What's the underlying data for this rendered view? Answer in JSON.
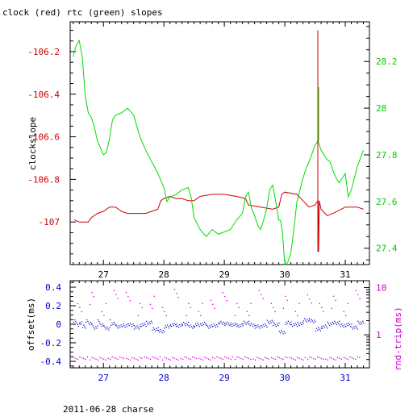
{
  "title": "clock (red) rtc (green) slopes",
  "footer": "2011-06-28 charse",
  "colors": {
    "clock": "#cc0000",
    "rtc": "#00dd00",
    "offset": "#0000cc",
    "rtt": "#dd00dd",
    "axis": "#000000"
  },
  "chart_data": [
    {
      "type": "line",
      "title": "clock (red) rtc (green) slopes",
      "xlabel": "",
      "ylabel": "clockslope",
      "y2label": "",
      "xlim": [
        26.45,
        31.4
      ],
      "ylim": [
        -107.2,
        -106.06
      ],
      "y2lim": [
        27.33,
        28.37
      ],
      "x_ticks": [
        "27",
        "28",
        "29",
        "30",
        "31"
      ],
      "y_ticks": [
        "-106.2",
        "-106.4",
        "-106.6",
        "-106.8",
        "-107"
      ],
      "y2_ticks": [
        "28.2",
        "28",
        "27.8",
        "27.6",
        "27.4"
      ],
      "series": [
        {
          "name": "clock",
          "axis": "left",
          "x": [
            26.52,
            26.6,
            26.7,
            26.75,
            26.8,
            26.9,
            27.0,
            27.1,
            27.2,
            27.3,
            27.4,
            27.5,
            27.6,
            27.7,
            27.8,
            27.9,
            27.95,
            28.0,
            28.1,
            28.2,
            28.3,
            28.4,
            28.5,
            28.6,
            28.8,
            29.0,
            29.2,
            29.35,
            29.4,
            29.6,
            29.8,
            29.9,
            29.95,
            30.0,
            30.2,
            30.3,
            30.4,
            30.5,
            30.55,
            30.56,
            30.57,
            30.6,
            30.7,
            30.8,
            31.0,
            31.1,
            31.2,
            31.3
          ],
          "y": [
            -106.99,
            -107.0,
            -107.0,
            -107.0,
            -106.98,
            -106.96,
            -106.95,
            -106.93,
            -106.93,
            -106.95,
            -106.96,
            -106.96,
            -106.96,
            -106.96,
            -106.95,
            -106.94,
            -106.9,
            -106.89,
            -106.88,
            -106.89,
            -106.89,
            -106.9,
            -106.9,
            -106.88,
            -106.87,
            -106.87,
            -106.88,
            -106.89,
            -106.92,
            -106.93,
            -106.94,
            -106.93,
            -106.87,
            -106.86,
            -106.87,
            -106.9,
            -106.93,
            -106.92,
            -106.9,
            -107.14,
            -106.9,
            -106.94,
            -106.97,
            -106.96,
            -106.93,
            -106.93,
            -106.93,
            -106.94
          ]
        },
        {
          "name": "rtc",
          "axis": "right",
          "x": [
            26.5,
            26.55,
            26.6,
            26.65,
            26.7,
            26.75,
            26.8,
            26.85,
            26.9,
            26.95,
            27.0,
            27.05,
            27.1,
            27.15,
            27.2,
            27.3,
            27.4,
            27.5,
            27.6,
            27.7,
            27.8,
            27.9,
            28.0,
            28.05,
            28.1,
            28.2,
            28.3,
            28.4,
            28.45,
            28.5,
            28.6,
            28.7,
            28.8,
            28.9,
            29.0,
            29.1,
            29.2,
            29.3,
            29.35,
            29.4,
            29.45,
            29.5,
            29.55,
            29.6,
            29.65,
            29.7,
            29.75,
            29.8,
            29.85,
            29.9,
            29.93,
            29.96,
            30.0,
            30.05,
            30.1,
            30.15,
            30.2,
            30.25,
            30.3,
            30.35,
            30.4,
            30.5,
            30.55,
            30.6,
            30.7,
            30.75,
            30.8,
            30.85,
            30.9,
            30.95,
            31.0,
            31.05,
            31.1,
            31.2,
            31.3
          ],
          "y": [
            28.22,
            28.27,
            28.29,
            28.22,
            28.05,
            27.98,
            27.96,
            27.92,
            27.86,
            27.83,
            27.8,
            27.81,
            27.87,
            27.95,
            27.97,
            27.98,
            28.0,
            27.97,
            27.88,
            27.82,
            27.77,
            27.72,
            27.66,
            27.6,
            27.62,
            27.63,
            27.65,
            27.66,
            27.62,
            27.53,
            27.48,
            27.45,
            27.48,
            27.46,
            27.47,
            27.48,
            27.52,
            27.55,
            27.62,
            27.64,
            27.57,
            27.54,
            27.5,
            27.48,
            27.52,
            27.57,
            27.65,
            27.67,
            27.6,
            27.52,
            27.52,
            27.47,
            27.33,
            27.34,
            27.38,
            27.48,
            27.6,
            27.65,
            27.7,
            27.74,
            27.77,
            27.84,
            27.86,
            27.82,
            27.78,
            27.77,
            27.73,
            27.7,
            27.68,
            27.7,
            27.72,
            27.62,
            27.65,
            27.75,
            27.82
          ]
        }
      ]
    },
    {
      "type": "scatter",
      "xlabel": "",
      "ylabel": "offset(ms)",
      "y2label": "rnd-trip(ms)",
      "y2scale": "log",
      "xlim": [
        26.45,
        31.4
      ],
      "ylim": [
        -0.47,
        0.47
      ],
      "y2lim": [
        0.2,
        14
      ],
      "x_ticks": [
        "27",
        "28",
        "29",
        "30",
        "31"
      ],
      "y_ticks": [
        "0.4",
        "0.2",
        "0",
        "-0.2",
        "-0.4"
      ],
      "y2_ticks": [
        "10",
        "1"
      ],
      "series": [
        {
          "name": "offset",
          "axis": "left",
          "x": [
            26.55,
            26.65,
            26.75,
            26.85,
            26.95,
            27.05,
            27.15,
            27.25,
            27.35,
            27.45,
            27.55,
            27.65,
            27.75,
            27.85,
            27.95,
            28.05,
            28.15,
            28.25,
            28.35,
            28.45,
            28.55,
            28.65,
            28.75,
            28.85,
            28.95,
            29.05,
            29.15,
            29.25,
            29.35,
            29.45,
            29.55,
            29.65,
            29.75,
            29.85,
            29.95,
            30.05,
            30.15,
            30.25,
            30.35,
            30.45,
            30.55,
            30.65,
            30.75,
            30.85,
            30.95,
            31.05,
            31.15,
            31.25
          ],
          "y": [
            0.0,
            -0.02,
            0.01,
            -0.03,
            0.0,
            -0.04,
            0.01,
            -0.02,
            -0.01,
            0.0,
            -0.03,
            0.0,
            0.02,
            -0.05,
            -0.07,
            -0.02,
            0.0,
            -0.01,
            0.01,
            -0.02,
            0.0,
            0.01,
            -0.02,
            -0.01,
            0.02,
            0.01,
            0.0,
            -0.01,
            0.02,
            0.0,
            -0.02,
            -0.01,
            0.03,
            0.0,
            -0.08,
            0.02,
            0.0,
            0.01,
            0.05,
            0.04,
            -0.05,
            -0.02,
            0.01,
            0.02,
            -0.01,
            0.0,
            -0.03,
            0.02
          ]
        },
        {
          "name": "rnd-trip",
          "axis": "right",
          "x": [
            26.6,
            26.8,
            27.0,
            27.2,
            27.4,
            27.6,
            27.8,
            28.0,
            28.2,
            28.4,
            28.6,
            28.8,
            29.0,
            29.2,
            29.4,
            29.6,
            29.8,
            30.0,
            30.2,
            30.4,
            30.6,
            30.8,
            31.0,
            31.2
          ],
          "y": [
            3.5,
            6.0,
            3.5,
            8.0,
            6.0,
            3.5,
            5.0,
            3.5,
            7.0,
            3.5,
            3.5,
            5.0,
            6.0,
            3.5,
            3.5,
            8.0,
            3.5,
            5.0,
            3.5,
            6.5,
            3.5,
            5.0,
            3.5,
            8.0
          ]
        },
        {
          "name": "rnd-trip-floor",
          "axis": "right",
          "x": [
            26.6,
            26.9,
            27.2,
            27.5,
            27.8,
            28.1,
            28.4,
            28.7,
            29.0,
            29.3,
            29.6,
            29.9,
            30.2,
            30.5,
            30.8,
            31.1
          ],
          "y": [
            0.33,
            0.32,
            0.33,
            0.32,
            0.33,
            0.32,
            0.33,
            0.32,
            0.33,
            0.33,
            0.32,
            0.33,
            0.32,
            0.33,
            0.32,
            0.33
          ]
        }
      ]
    }
  ]
}
